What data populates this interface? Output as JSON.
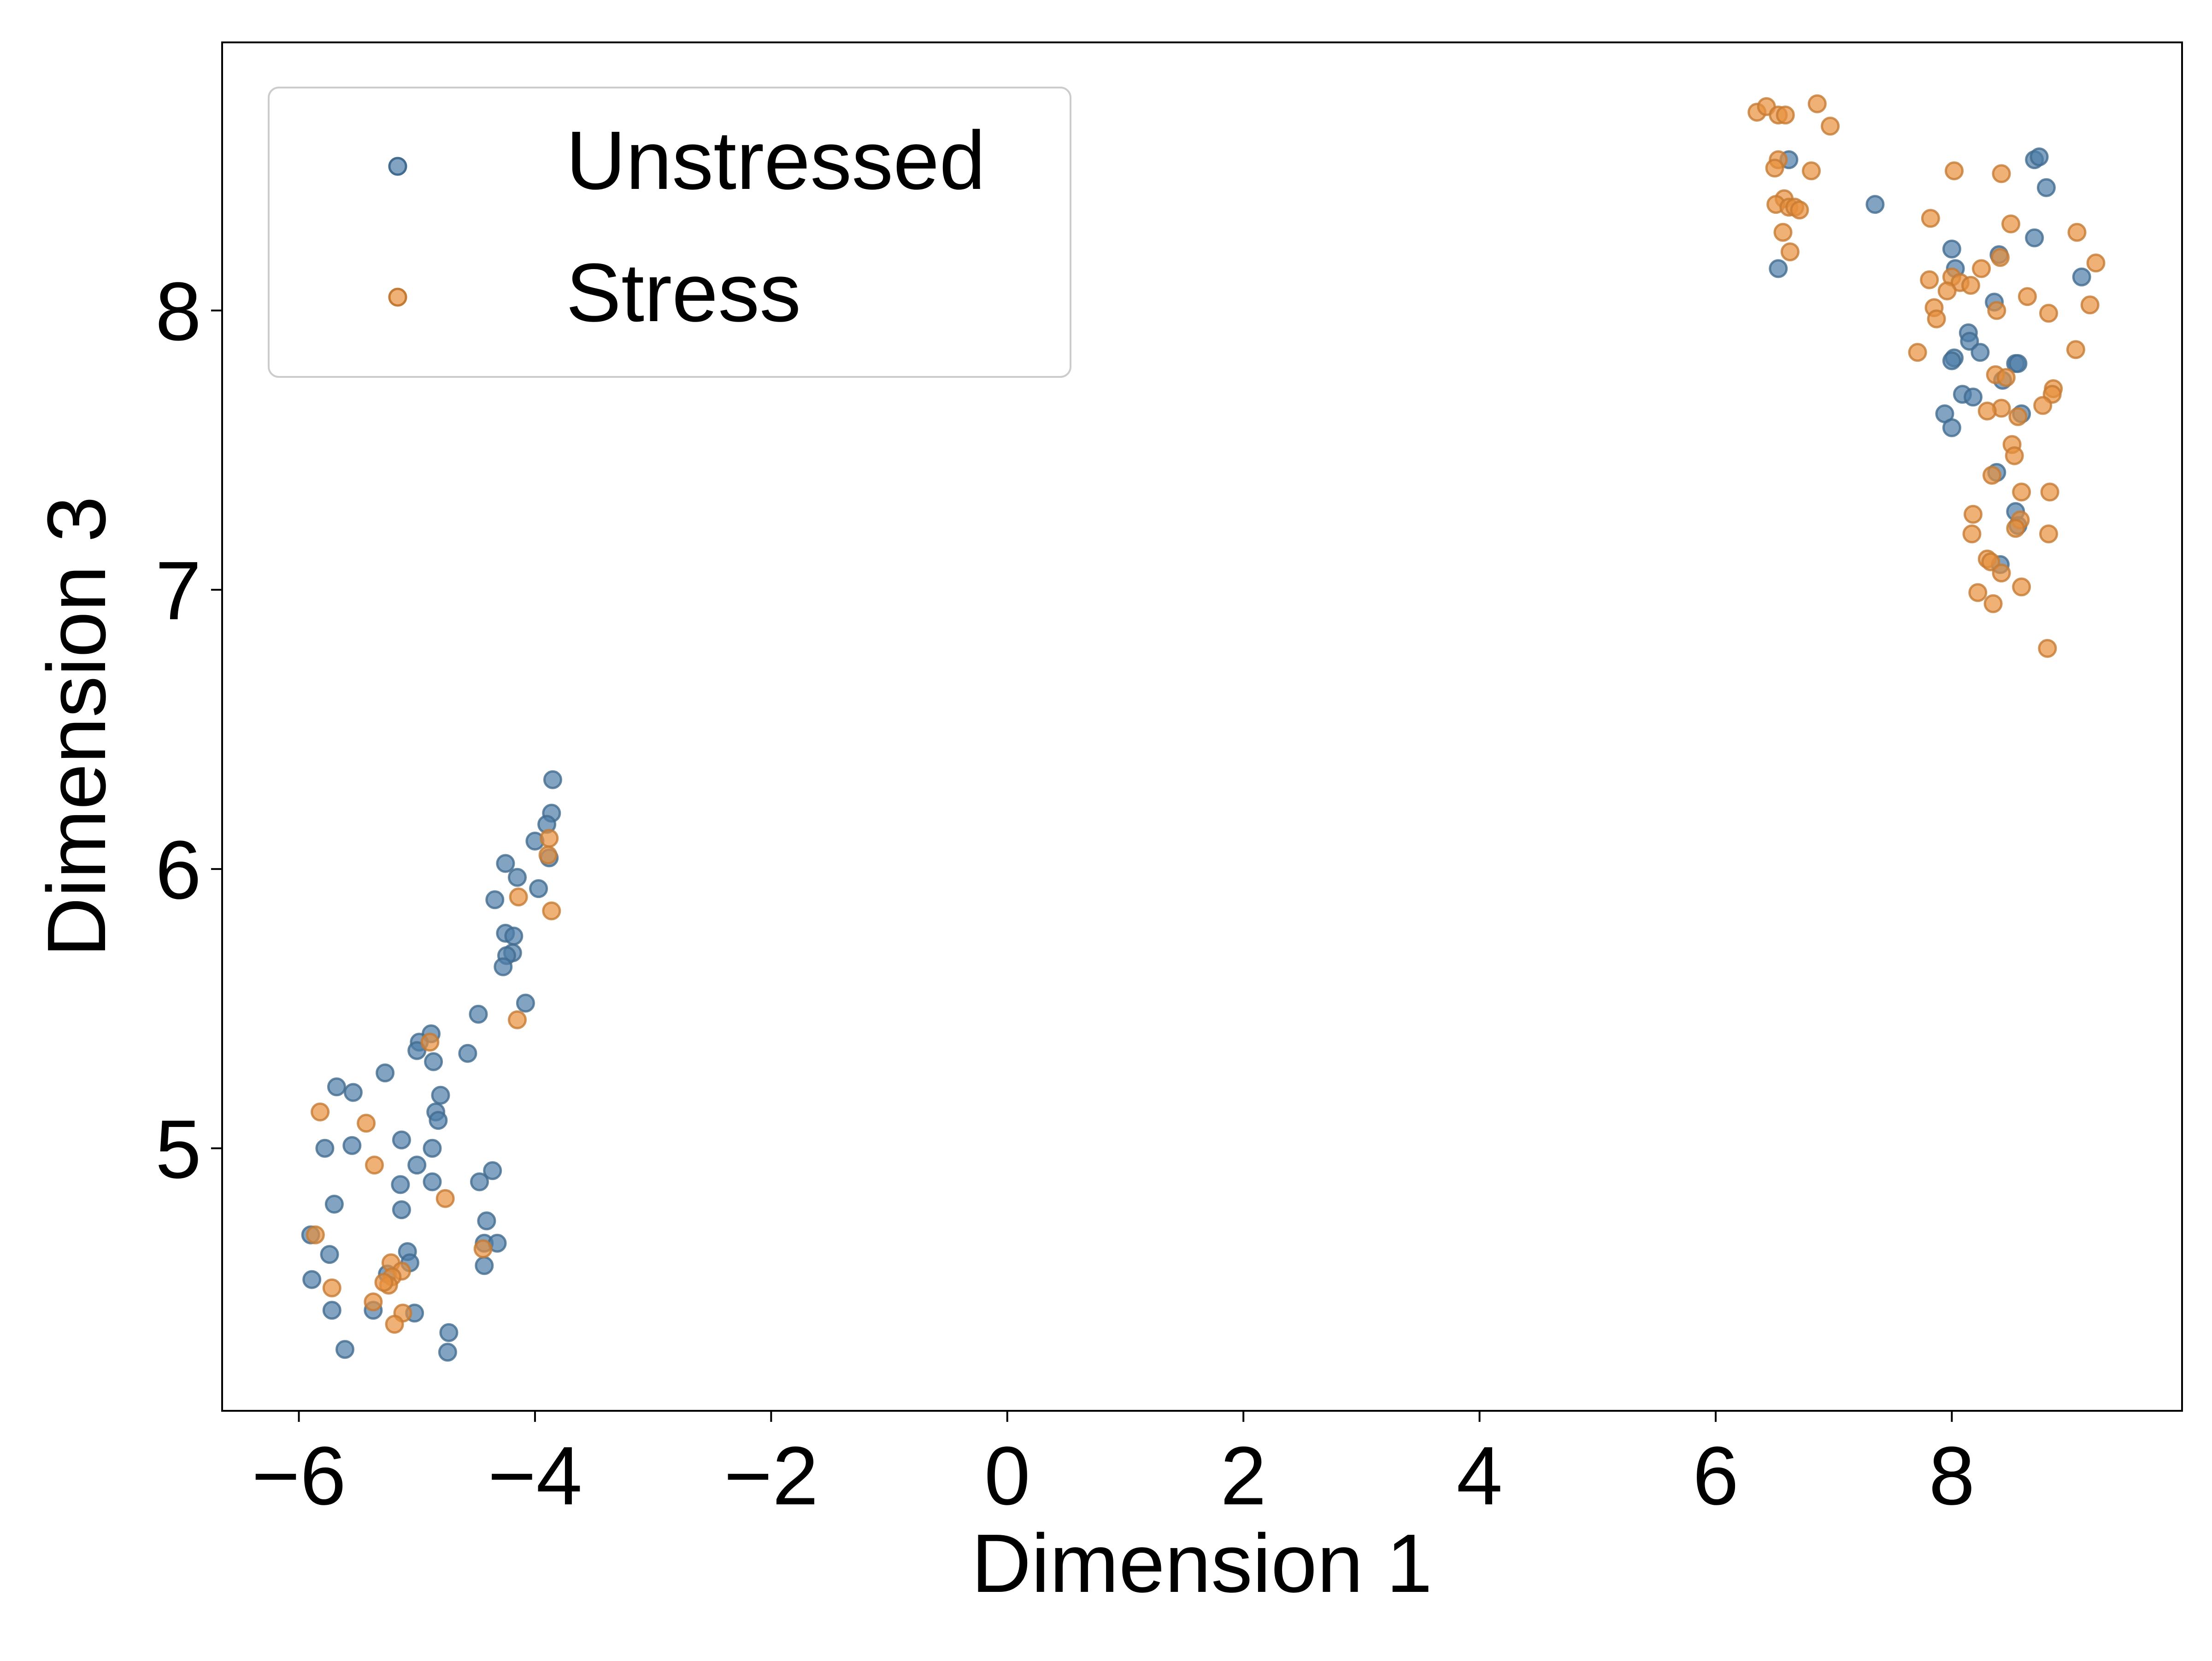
{
  "chart_data": {
    "type": "scatter",
    "title": "",
    "xlabel": "Dimension 1",
    "ylabel": "Dimension 3",
    "xlim": [
      -6.65,
      9.95
    ],
    "ylim": [
      4.06,
      8.96
    ],
    "xticks": [
      -6,
      -4,
      -2,
      0,
      2,
      4,
      6,
      8
    ],
    "yticks": [
      5,
      6,
      7,
      8
    ],
    "xtick_labels": [
      "−6",
      "−4",
      "−2",
      "0",
      "2",
      "4",
      "6",
      "8"
    ],
    "ytick_labels": [
      "5",
      "6",
      "7",
      "8"
    ],
    "grid": false,
    "legend": {
      "placement": "top-left"
    },
    "series": [
      {
        "name": "Unstressed",
        "color": "#4d7ea8",
        "points": [
          [
            -3.85,
            6.32
          ],
          [
            -3.86,
            6.2
          ],
          [
            -3.88,
            6.04
          ],
          [
            -3.9,
            6.16
          ],
          [
            -4.0,
            6.1
          ],
          [
            -3.97,
            5.93
          ],
          [
            -4.15,
            5.97
          ],
          [
            -4.25,
            6.02
          ],
          [
            -4.34,
            5.89
          ],
          [
            -4.25,
            5.77
          ],
          [
            -4.18,
            5.76
          ],
          [
            -4.19,
            5.7
          ],
          [
            -4.24,
            5.69
          ],
          [
            -4.27,
            5.65
          ],
          [
            -4.08,
            5.52
          ],
          [
            -4.48,
            5.48
          ],
          [
            -4.57,
            5.34
          ],
          [
            -4.88,
            5.41
          ],
          [
            -4.98,
            5.38
          ],
          [
            -5.0,
            5.35
          ],
          [
            -4.86,
            5.31
          ],
          [
            -5.27,
            5.27
          ],
          [
            -5.68,
            5.22
          ],
          [
            -5.54,
            5.2
          ],
          [
            -4.8,
            5.19
          ],
          [
            -4.84,
            5.13
          ],
          [
            -4.82,
            5.1
          ],
          [
            -5.13,
            5.03
          ],
          [
            -4.87,
            5.0
          ],
          [
            -5.55,
            5.01
          ],
          [
            -5.78,
            5.0
          ],
          [
            -5.0,
            4.94
          ],
          [
            -4.36,
            4.92
          ],
          [
            -4.47,
            4.88
          ],
          [
            -4.87,
            4.88
          ],
          [
            -5.14,
            4.87
          ],
          [
            -5.7,
            4.8
          ],
          [
            -5.13,
            4.78
          ],
          [
            -4.41,
            4.74
          ],
          [
            -5.9,
            4.69
          ],
          [
            -4.43,
            4.66
          ],
          [
            -4.32,
            4.66
          ],
          [
            -5.08,
            4.63
          ],
          [
            -5.74,
            4.62
          ],
          [
            -5.06,
            4.59
          ],
          [
            -4.43,
            4.58
          ],
          [
            -5.89,
            4.53
          ],
          [
            -5.25,
            4.55
          ],
          [
            -5.72,
            4.42
          ],
          [
            -5.37,
            4.42
          ],
          [
            -5.02,
            4.41
          ],
          [
            -4.73,
            4.34
          ],
          [
            -5.61,
            4.28
          ],
          [
            -4.74,
            4.27
          ],
          [
            6.62,
            8.54
          ],
          [
            7.35,
            8.38
          ],
          [
            6.53,
            8.15
          ],
          [
            8.7,
            8.54
          ],
          [
            8.74,
            8.55
          ],
          [
            8.8,
            8.44
          ],
          [
            8.7,
            8.26
          ],
          [
            8.0,
            8.22
          ],
          [
            8.4,
            8.2
          ],
          [
            8.03,
            8.15
          ],
          [
            9.1,
            8.12
          ],
          [
            8.36,
            8.03
          ],
          [
            8.14,
            7.92
          ],
          [
            8.15,
            7.89
          ],
          [
            8.24,
            7.85
          ],
          [
            8.02,
            7.83
          ],
          [
            8.0,
            7.82
          ],
          [
            8.54,
            7.81
          ],
          [
            8.56,
            7.81
          ],
          [
            8.43,
            7.75
          ],
          [
            8.09,
            7.7
          ],
          [
            8.18,
            7.69
          ],
          [
            7.94,
            7.63
          ],
          [
            8.59,
            7.63
          ],
          [
            8.0,
            7.58
          ],
          [
            8.38,
            7.42
          ],
          [
            8.54,
            7.28
          ],
          [
            8.56,
            7.23
          ],
          [
            8.41,
            7.09
          ]
        ]
      },
      {
        "name": "Stress",
        "color": "#e8903c",
        "points": [
          [
            -3.88,
            6.11
          ],
          [
            -3.89,
            6.05
          ],
          [
            -4.14,
            5.9
          ],
          [
            -3.86,
            5.85
          ],
          [
            -4.15,
            5.46
          ],
          [
            -4.89,
            5.38
          ],
          [
            -5.82,
            5.13
          ],
          [
            -5.43,
            5.09
          ],
          [
            -5.36,
            4.94
          ],
          [
            -4.76,
            4.82
          ],
          [
            -5.86,
            4.69
          ],
          [
            -4.44,
            4.64
          ],
          [
            -5.22,
            4.59
          ],
          [
            -5.13,
            4.56
          ],
          [
            -5.21,
            4.54
          ],
          [
            -5.24,
            4.51
          ],
          [
            -5.28,
            4.52
          ],
          [
            -5.72,
            4.5
          ],
          [
            -5.37,
            4.45
          ],
          [
            -5.12,
            4.41
          ],
          [
            -5.19,
            4.37
          ],
          [
            6.35,
            8.71
          ],
          [
            6.43,
            8.73
          ],
          [
            6.53,
            8.7
          ],
          [
            6.59,
            8.7
          ],
          [
            6.86,
            8.74
          ],
          [
            6.97,
            8.66
          ],
          [
            6.53,
            8.54
          ],
          [
            6.5,
            8.51
          ],
          [
            6.81,
            8.5
          ],
          [
            6.58,
            8.4
          ],
          [
            6.51,
            8.38
          ],
          [
            6.62,
            8.37
          ],
          [
            6.67,
            8.37
          ],
          [
            6.71,
            8.36
          ],
          [
            6.57,
            8.28
          ],
          [
            6.63,
            8.21
          ],
          [
            8.02,
            8.5
          ],
          [
            8.42,
            8.49
          ],
          [
            7.82,
            8.33
          ],
          [
            8.5,
            8.31
          ],
          [
            9.06,
            8.28
          ],
          [
            8.41,
            8.19
          ],
          [
            9.22,
            8.17
          ],
          [
            8.25,
            8.15
          ],
          [
            8.0,
            8.12
          ],
          [
            7.81,
            8.11
          ],
          [
            8.07,
            8.1
          ],
          [
            8.16,
            8.09
          ],
          [
            7.96,
            8.07
          ],
          [
            8.64,
            8.05
          ],
          [
            9.17,
            8.02
          ],
          [
            7.85,
            8.01
          ],
          [
            8.38,
            8.0
          ],
          [
            8.82,
            7.99
          ],
          [
            7.87,
            7.97
          ],
          [
            9.05,
            7.86
          ],
          [
            7.71,
            7.85
          ],
          [
            8.37,
            7.77
          ],
          [
            8.46,
            7.76
          ],
          [
            8.86,
            7.72
          ],
          [
            8.85,
            7.7
          ],
          [
            8.77,
            7.66
          ],
          [
            8.42,
            7.65
          ],
          [
            8.3,
            7.64
          ],
          [
            8.56,
            7.62
          ],
          [
            8.51,
            7.52
          ],
          [
            8.53,
            7.48
          ],
          [
            8.34,
            7.41
          ],
          [
            8.59,
            7.35
          ],
          [
            8.83,
            7.35
          ],
          [
            8.18,
            7.27
          ],
          [
            8.58,
            7.25
          ],
          [
            8.54,
            7.22
          ],
          [
            8.17,
            7.2
          ],
          [
            8.82,
            7.2
          ],
          [
            8.3,
            7.11
          ],
          [
            8.33,
            7.1
          ],
          [
            8.42,
            7.06
          ],
          [
            8.22,
            6.99
          ],
          [
            8.59,
            7.01
          ],
          [
            8.35,
            6.95
          ],
          [
            8.81,
            6.79
          ]
        ]
      }
    ]
  }
}
